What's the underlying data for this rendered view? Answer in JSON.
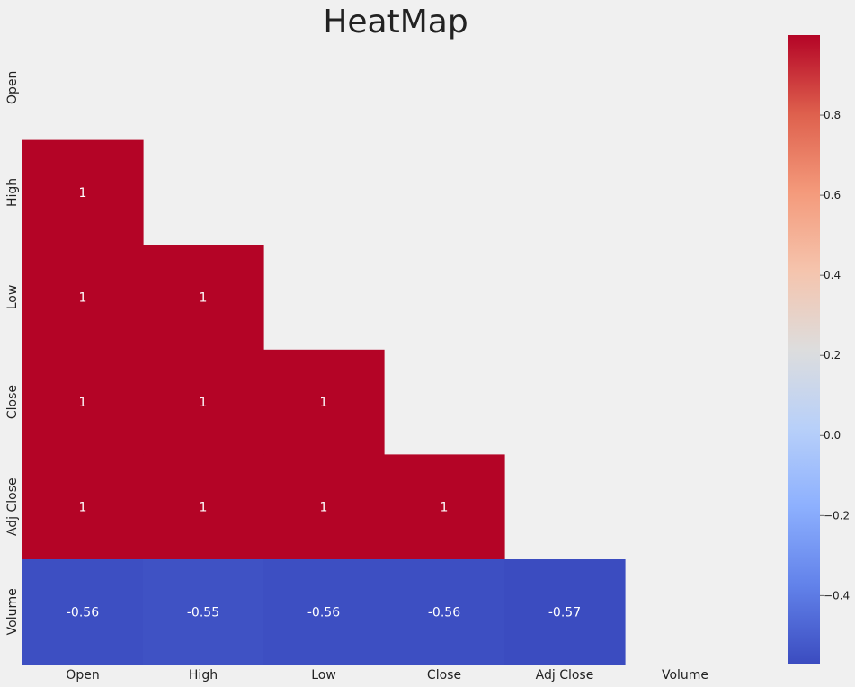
{
  "chart_data": {
    "type": "heatmap",
    "title": "HeatMap",
    "mask": "upper-triangle-including-diagonal",
    "x_categories": [
      "Open",
      "High",
      "Low",
      "Close",
      "Adj Close",
      "Volume"
    ],
    "y_categories": [
      "Open",
      "High",
      "Low",
      "Close",
      "Adj Close",
      "Volume"
    ],
    "cells": [
      {
        "row": "High",
        "col": "Open",
        "value": 1.0,
        "label": "1"
      },
      {
        "row": "Low",
        "col": "Open",
        "value": 1.0,
        "label": "1"
      },
      {
        "row": "Low",
        "col": "High",
        "value": 1.0,
        "label": "1"
      },
      {
        "row": "Close",
        "col": "Open",
        "value": 1.0,
        "label": "1"
      },
      {
        "row": "Close",
        "col": "High",
        "value": 1.0,
        "label": "1"
      },
      {
        "row": "Close",
        "col": "Low",
        "value": 1.0,
        "label": "1"
      },
      {
        "row": "Adj Close",
        "col": "Open",
        "value": 1.0,
        "label": "1"
      },
      {
        "row": "Adj Close",
        "col": "High",
        "value": 1.0,
        "label": "1"
      },
      {
        "row": "Adj Close",
        "col": "Low",
        "value": 1.0,
        "label": "1"
      },
      {
        "row": "Adj Close",
        "col": "Close",
        "value": 1.0,
        "label": "1"
      },
      {
        "row": "Volume",
        "col": "Open",
        "value": -0.56,
        "label": "-0.56"
      },
      {
        "row": "Volume",
        "col": "High",
        "value": -0.55,
        "label": "-0.55"
      },
      {
        "row": "Volume",
        "col": "Low",
        "value": -0.56,
        "label": "-0.56"
      },
      {
        "row": "Volume",
        "col": "Close",
        "value": -0.56,
        "label": "-0.56"
      },
      {
        "row": "Volume",
        "col": "Adj Close",
        "value": -0.57,
        "label": "-0.57"
      }
    ],
    "colormap": "coolwarm",
    "colorbar": {
      "range": [
        -0.57,
        1.0
      ],
      "ticks": [
        -0.4,
        -0.2,
        0.0,
        0.2,
        0.4,
        0.6,
        0.8
      ],
      "tick_labels": [
        "−0.4",
        "−0.2",
        "0.0",
        "0.2",
        "0.4",
        "0.6",
        "0.8"
      ],
      "placement": "right"
    },
    "grid": false
  }
}
